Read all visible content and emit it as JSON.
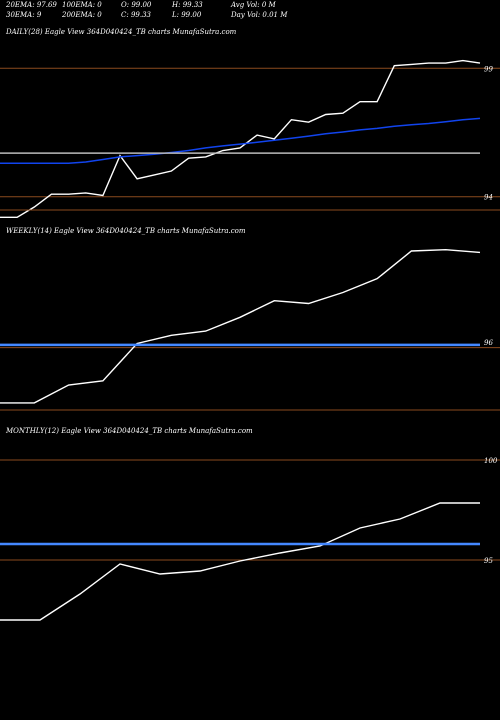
{
  "header": {
    "row1": [
      {
        "label": "20EMA: 97.69"
      },
      {
        "label": "100EMA: 0"
      },
      {
        "label": "O: 99.00"
      },
      {
        "label": "H: 99.33"
      },
      {
        "label": "Avg Vol: 0  M"
      }
    ],
    "row2": [
      {
        "label": "30EMA: 9"
      },
      {
        "label": "200EMA: 0"
      },
      {
        "label": "C: 99.33"
      },
      {
        "label": "L: 99.00"
      },
      {
        "label": "Day Vol: 0.01  M"
      }
    ]
  },
  "chart_data": [
    {
      "type": "line",
      "title": "DAILY(28) Eagle  View  364D040424_TB charts MunafaSutra.com",
      "ticks": [
        {
          "label": "99",
          "value": 99
        },
        {
          "label": "94",
          "value": 94
        }
      ],
      "price_lines": [
        99,
        94
      ],
      "ylim": [
        92.9,
        100.1
      ],
      "series": [
        {
          "role": "price",
          "color": "#ffffff",
          "values": [
            93.2,
            93.2,
            93.6,
            94.1,
            94.1,
            94.15,
            94.05,
            95.6,
            94.7,
            94.85,
            95.0,
            95.5,
            95.55,
            95.8,
            95.9,
            96.4,
            96.25,
            97.0,
            96.9,
            97.2,
            97.25,
            97.7,
            97.7,
            99.1,
            99.15,
            99.2,
            99.2,
            99.3,
            99.2
          ]
        },
        {
          "role": "ema",
          "color": "#1144ee",
          "values": [
            95.3,
            95.3,
            95.3,
            95.3,
            95.3,
            95.35,
            95.45,
            95.55,
            95.6,
            95.65,
            95.72,
            95.8,
            95.9,
            95.98,
            96.05,
            96.12,
            96.2,
            96.28,
            96.36,
            96.45,
            96.52,
            96.6,
            96.66,
            96.74,
            96.8,
            96.85,
            96.92,
            97.0,
            97.05
          ]
        },
        {
          "role": "level",
          "color": "#bbbbbb",
          "values": [
            95.7,
            95.7
          ]
        }
      ]
    },
    {
      "type": "line",
      "title": "WEEKLY(14) Eagle  View  364D040424_TB charts MunafaSutra.com",
      "ticks": [
        {
          "label": "96",
          "value": 96
        }
      ],
      "price_lines": [
        95.8
      ],
      "ylim": [
        93.0,
        99.7
      ],
      "series": [
        {
          "role": "price",
          "color": "#ffffff",
          "values": [
            93.8,
            93.8,
            94.45,
            94.6,
            95.95,
            96.25,
            96.4,
            96.9,
            97.5,
            97.4,
            97.8,
            98.3,
            99.3,
            99.35,
            99.25
          ]
        },
        {
          "role": "ema",
          "color": "#4488ff",
          "values": [
            95.9,
            95.9
          ]
        }
      ]
    },
    {
      "type": "line",
      "title": "MONTHLY(12) Eagle  View  364D040424_TB charts MunafaSutra.com",
      "ticks": [
        {
          "label": "100",
          "value": 100
        },
        {
          "label": "95",
          "value": 95
        }
      ],
      "price_lines": [
        100,
        95
      ],
      "ylim": [
        91.5,
        101.0
      ],
      "series": [
        {
          "role": "price",
          "color": "#ffffff",
          "values": [
            92.0,
            92.0,
            93.3,
            94.8,
            94.3,
            94.45,
            94.95,
            95.35,
            95.7,
            96.6,
            97.05,
            97.85,
            97.85
          ]
        },
        {
          "role": "ema",
          "color": "#4488ff",
          "values": [
            95.8,
            95.8
          ]
        }
      ]
    }
  ]
}
